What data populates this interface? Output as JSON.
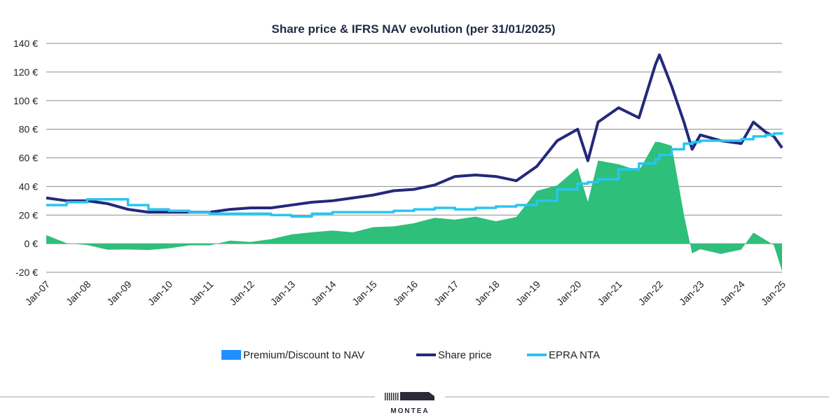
{
  "chart_data": {
    "type": "line",
    "title": "Share price & IFRS NAV evolution  (per 31/01/2025)",
    "ylim": [
      -20,
      140
    ],
    "yticks": [
      "-20 €",
      "0 €",
      "20 €",
      "40 €",
      "60 €",
      "80 €",
      "100 €",
      "120 €",
      "140 €"
    ],
    "ytick_values": [
      -20,
      0,
      20,
      40,
      60,
      80,
      100,
      120,
      140
    ],
    "categories": [
      "Jan-07",
      "Jan-08",
      "Jan-09",
      "Jan-10",
      "Jan-11",
      "Jan-12",
      "Jan-13",
      "Jan-14",
      "Jan-15",
      "Jan-16",
      "Jan-17",
      "Jan-18",
      "Jan-19",
      "Jan-20",
      "Jan-21",
      "Jan-22",
      "Jan-23",
      "Jan-24",
      "Jan-25"
    ],
    "grid": true,
    "legend_position": "bottom",
    "x": [
      2007.0,
      2007.5,
      2008.0,
      2008.5,
      2009.0,
      2009.5,
      2010.0,
      2010.5,
      2011.0,
      2011.5,
      2012.0,
      2012.5,
      2013.0,
      2013.5,
      2014.0,
      2014.5,
      2015.0,
      2015.5,
      2016.0,
      2016.5,
      2017.0,
      2017.5,
      2018.0,
      2018.5,
      2019.0,
      2019.5,
      2020.0,
      2020.25,
      2020.5,
      2021.0,
      2021.5,
      2021.9,
      2022.0,
      2022.3,
      2022.6,
      2022.8,
      2023.0,
      2023.5,
      2024.0,
      2024.3,
      2024.6,
      2024.8,
      2025.0
    ],
    "series": [
      {
        "name": "Premium/Discount to NAV",
        "kind": "area",
        "color": "#2ebf7a",
        "values": [
          6,
          1,
          -2,
          -3,
          -5,
          -4,
          -3,
          -2,
          0,
          1,
          2,
          3,
          6,
          9,
          8,
          9,
          11,
          12,
          15,
          17,
          18,
          18,
          16,
          19,
          36,
          42,
          52,
          30,
          58,
          55,
          52,
          70,
          72,
          68,
          20,
          -6,
          -5,
          -6,
          -5,
          8,
          3,
          -2,
          -18
        ]
      },
      {
        "name": "Share price",
        "kind": "line",
        "color": "#23297a",
        "values": [
          32,
          30,
          30,
          28,
          24,
          22,
          22,
          22,
          22,
          24,
          25,
          25,
          27,
          29,
          30,
          32,
          34,
          37,
          38,
          41,
          47,
          48,
          47,
          44,
          54,
          72,
          80,
          58,
          85,
          95,
          88,
          125,
          132,
          110,
          85,
          66,
          76,
          72,
          70,
          85,
          78,
          75,
          67
        ]
      },
      {
        "name": "EPRA NTA",
        "kind": "step",
        "color": "#29c5f0",
        "values": [
          27,
          29,
          31,
          31,
          27,
          24,
          23,
          22,
          21,
          21,
          21,
          20,
          19,
          21,
          22,
          22,
          22,
          23,
          24,
          25,
          24,
          25,
          26,
          27,
          30,
          38,
          42,
          43,
          45,
          52,
          56,
          59,
          62,
          66,
          70,
          71,
          72,
          72,
          73,
          75,
          76,
          77,
          78
        ]
      }
    ]
  },
  "legend": {
    "items": [
      "Premium/Discount to NAV",
      "Share price",
      "EPRA NTA"
    ]
  },
  "footer": {
    "logo_text": "MONTEA"
  }
}
